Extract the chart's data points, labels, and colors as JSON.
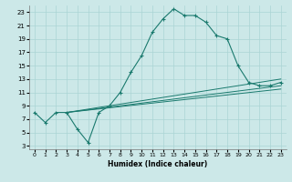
{
  "xlabel": "Humidex (Indice chaleur)",
  "bg_color": "#cce8e8",
  "line_color": "#1a7a6e",
  "xlim": [
    -0.5,
    23.5
  ],
  "ylim": [
    2.5,
    24.0
  ],
  "yticks": [
    3,
    5,
    7,
    9,
    11,
    13,
    15,
    17,
    19,
    21,
    23
  ],
  "xticks": [
    0,
    1,
    2,
    3,
    4,
    5,
    6,
    7,
    8,
    9,
    10,
    11,
    12,
    13,
    14,
    15,
    16,
    17,
    18,
    19,
    20,
    21,
    22,
    23
  ],
  "curve1_x": [
    0,
    1,
    2,
    3,
    4,
    5,
    6,
    7,
    8,
    9,
    10,
    11,
    12,
    13,
    14,
    15,
    16,
    17,
    18,
    19,
    20,
    21,
    22,
    23
  ],
  "curve1_y": [
    8,
    6.5,
    8,
    8,
    5.5,
    3.5,
    8,
    9,
    11,
    14,
    16.5,
    20,
    22,
    23.5,
    22.5,
    22.5,
    21.5,
    19.5,
    19,
    15,
    12.5,
    12,
    12,
    12.5
  ],
  "line2_x": [
    3,
    23
  ],
  "line2_y": [
    8,
    13.0
  ],
  "line3_x": [
    3,
    23
  ],
  "line3_y": [
    8,
    12.0
  ],
  "line4_x": [
    3,
    23
  ],
  "line4_y": [
    8,
    11.5
  ],
  "grid_color": "#aad4d4",
  "xlabel_fontsize": 5.5,
  "tick_fontsize_x": 4.5,
  "tick_fontsize_y": 5.0
}
